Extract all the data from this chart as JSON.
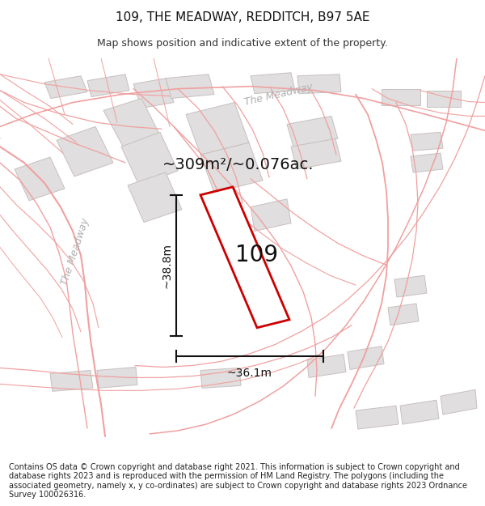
{
  "title_line1": "109, THE MEADWAY, REDDITCH, B97 5AE",
  "title_line2": "Map shows position and indicative extent of the property.",
  "footer_text": "Contains OS data © Crown copyright and database right 2021. This information is subject to Crown copyright and database rights 2023 and is reproduced with the permission of HM Land Registry. The polygons (including the associated geometry, namely x, y co-ordinates) are subject to Crown copyright and database rights 2023 Ordnance Survey 100026316.",
  "area_label": "~309m²/~0.076ac.",
  "number_label": "109",
  "dim_width_label": "~36.1m",
  "dim_height_label": "~38.8m",
  "bg_color": "#ffffff",
  "map_bg": "#ffffff",
  "road_color_thin": "#f0a0a0",
  "road_color_outline": "#e88888",
  "building_fill": "#e0dede",
  "building_edge": "#c8c0c0",
  "plot_outline_color": "#cc0000",
  "plot_fill_color": "#ffffff",
  "dim_line_color": "#111111",
  "road_label_color": "#aaaaaa",
  "title_fontsize": 11,
  "subtitle_fontsize": 9,
  "footer_fontsize": 7.0,
  "area_fontsize": 14,
  "number_fontsize": 20,
  "dim_fontsize": 10,
  "road_label_fontsize": 9
}
